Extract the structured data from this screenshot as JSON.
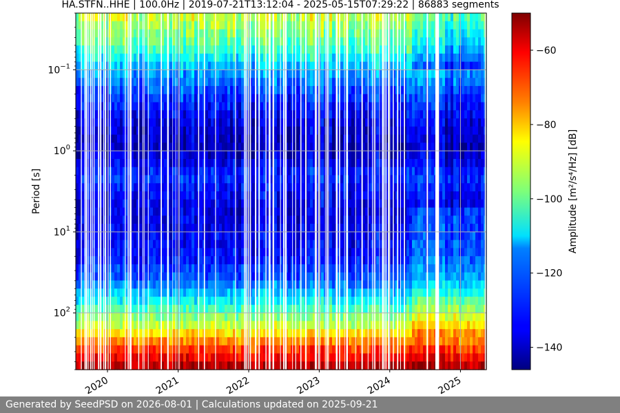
{
  "chart_data": {
    "type": "heatmap",
    "title": "HA.STFN..HHE | 100.0Hz | 2019-07-21T13:12:04 - 2025-05-15T07:29:22 | 86883 segments",
    "ylabel": "Period [s]",
    "xlabel": "",
    "x_range": [
      "2019-07-21",
      "2025-05-15"
    ],
    "x_ticks": [
      {
        "date": "2020-01-01",
        "label": "2020"
      },
      {
        "date": "2021-01-01",
        "label": "2021"
      },
      {
        "date": "2022-01-01",
        "label": "2022"
      },
      {
        "date": "2023-01-01",
        "label": "2023"
      },
      {
        "date": "2024-01-01",
        "label": "2024"
      },
      {
        "date": "2025-01-01",
        "label": "2025"
      }
    ],
    "y_scale": "log",
    "y_inverted": true,
    "y_range": [
      0.02,
      500
    ],
    "y_ticks": [
      {
        "value": 0.1,
        "base": "10",
        "exp": "−1"
      },
      {
        "value": 1,
        "base": "10",
        "exp": "0"
      },
      {
        "value": 10,
        "base": "10",
        "exp": "1"
      },
      {
        "value": 100,
        "base": "10",
        "exp": "2"
      }
    ],
    "colorbar": {
      "label": "Amplitude [m²/s⁴/Hz] [dB]",
      "colormap": "jet",
      "range": [
        -146,
        -50
      ],
      "ticks": [
        -140,
        -120,
        -100,
        -80,
        -60
      ],
      "tick_labels": [
        "−140",
        "−120",
        "−100",
        "−80",
        "−60"
      ]
    },
    "grid": true,
    "period_profile": [
      {
        "period": 0.02,
        "db": -90
      },
      {
        "period": 0.05,
        "db": -102
      },
      {
        "period": 0.1,
        "db": -118
      },
      {
        "period": 0.2,
        "db": -128
      },
      {
        "period": 0.5,
        "db": -138
      },
      {
        "period": 1,
        "db": -140
      },
      {
        "period": 2,
        "db": -130
      },
      {
        "period": 5,
        "db": -137
      },
      {
        "period": 10,
        "db": -135
      },
      {
        "period": 20,
        "db": -133
      },
      {
        "period": 40,
        "db": -125
      },
      {
        "period": 70,
        "db": -110
      },
      {
        "period": 100,
        "db": -100
      },
      {
        "period": 150,
        "db": -90
      },
      {
        "period": 250,
        "db": -70
      },
      {
        "period": 500,
        "db": -52
      }
    ],
    "data_gaps": [
      [
        "2023-12-23",
        "2024-01-03"
      ],
      [
        "2024-07-10",
        "2024-07-17"
      ],
      [
        "2024-08-24",
        "2024-09-12"
      ],
      [
        "2025-05-07",
        "2025-05-12"
      ]
    ]
  },
  "footer": {
    "text": "Generated by SeedPSD on 2026-08-01 | Calculations updated on 2025-09-21"
  }
}
